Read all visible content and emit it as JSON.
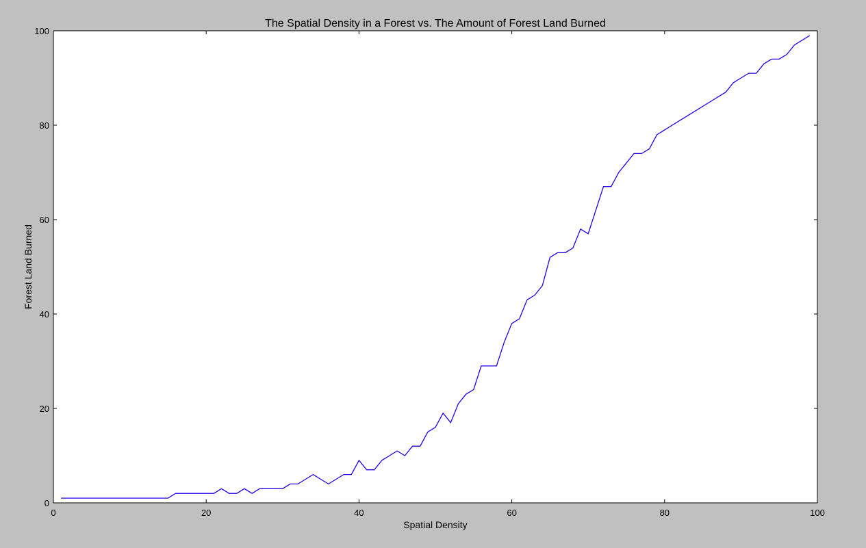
{
  "chart_data": {
    "type": "line",
    "title": "The Spatial Density in a Forest vs. The Amount of Forest Land Burned",
    "xlabel": "Spatial Density",
    "ylabel": "Forest Land Burned",
    "xlim": [
      0,
      100
    ],
    "ylim": [
      0,
      100
    ],
    "xticks": [
      0,
      20,
      40,
      60,
      80,
      100
    ],
    "yticks": [
      0,
      20,
      40,
      60,
      80,
      100
    ],
    "grid": false,
    "legend": "none",
    "line_color": "#2200ee",
    "plot_bg": "#ffffff",
    "figure_bg": "#c0c0c0",
    "series": [
      {
        "x": [
          1,
          2,
          3,
          4,
          5,
          6,
          7,
          8,
          9,
          10,
          11,
          12,
          13,
          14,
          15,
          16,
          17,
          18,
          19,
          20,
          21,
          22,
          23,
          24,
          25,
          26,
          27,
          28,
          29,
          30,
          31,
          32,
          33,
          34,
          35,
          36,
          37,
          38,
          39,
          40,
          41,
          42,
          43,
          44,
          45,
          46,
          47,
          48,
          49,
          50,
          51,
          52,
          53,
          54,
          55,
          56,
          57,
          58,
          59,
          60,
          61,
          62,
          63,
          64,
          65,
          66,
          67,
          68,
          69,
          70,
          71,
          72,
          73,
          74,
          75,
          76,
          77,
          78,
          79,
          80,
          81,
          82,
          83,
          84,
          85,
          86,
          87,
          88,
          89,
          90,
          91,
          92,
          93,
          94,
          95,
          96,
          97,
          98,
          99
        ],
        "y": [
          1,
          1,
          1,
          1,
          1,
          1,
          1,
          1,
          1,
          1,
          1,
          1,
          1,
          1,
          1,
          2,
          2,
          2,
          2,
          2,
          2,
          3,
          2,
          2,
          3,
          2,
          3,
          3,
          3,
          3,
          4,
          4,
          5,
          6,
          5,
          4,
          5,
          6,
          6,
          9,
          7,
          7,
          9,
          10,
          11,
          10,
          12,
          12,
          15,
          16,
          19,
          17,
          21,
          23,
          24,
          29,
          29,
          29,
          34,
          38,
          39,
          43,
          44,
          46,
          52,
          53,
          53,
          54,
          58,
          57,
          62,
          67,
          67,
          70,
          72,
          74,
          74,
          75,
          78,
          79,
          80,
          81,
          82,
          83,
          84,
          85,
          86,
          87,
          89,
          90,
          91,
          91,
          93,
          94,
          94,
          95,
          97,
          98,
          99
        ]
      }
    ]
  }
}
